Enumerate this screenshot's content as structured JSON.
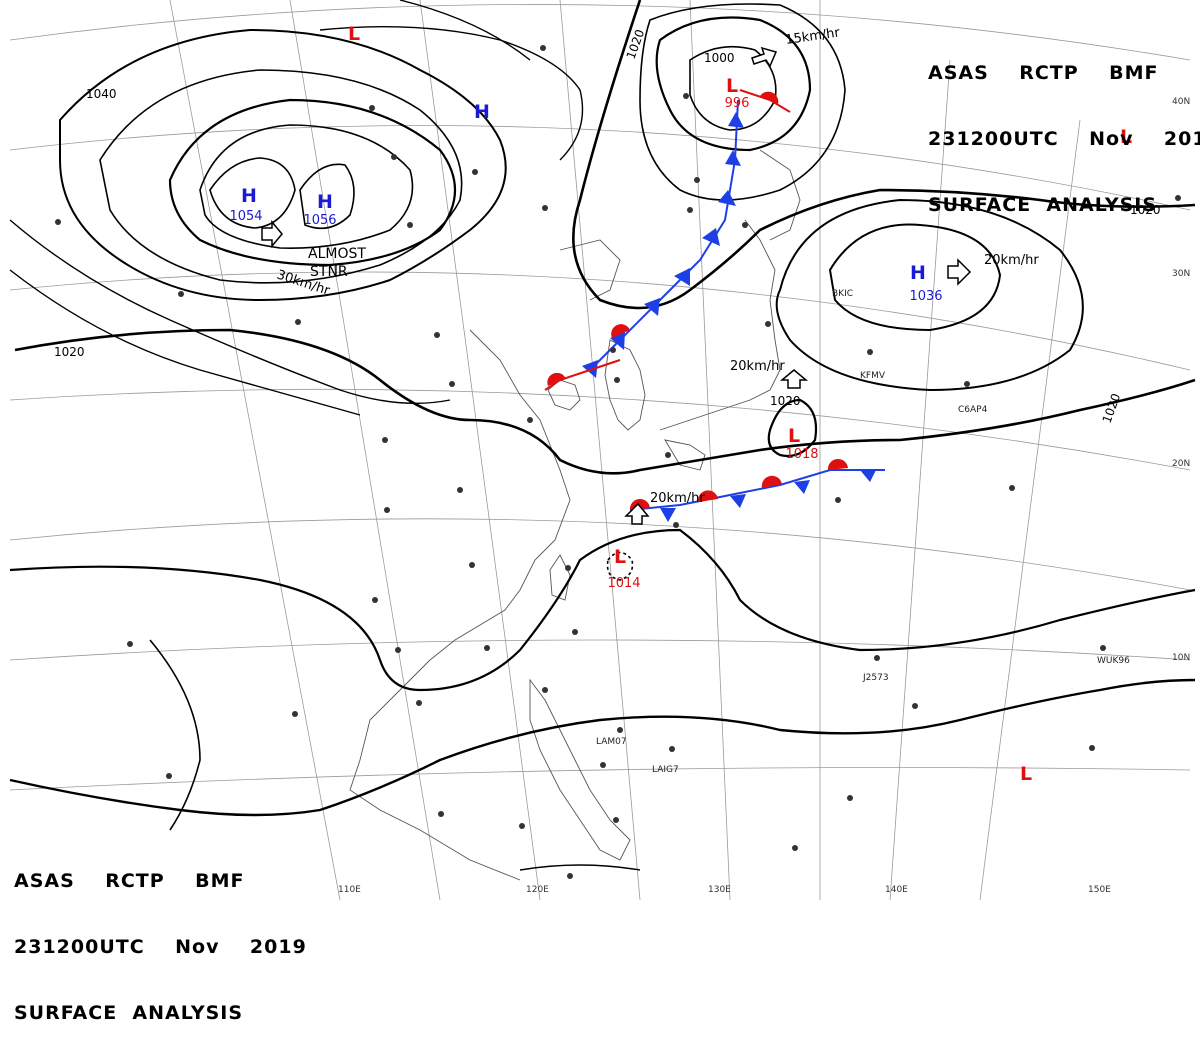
{
  "header": {
    "line1": "ASAS    RCTP    BMF",
    "line2": "231200UTC    Nov    2019",
    "line3": "SURFACE  ANALYSIS"
  },
  "pressure_systems": [
    {
      "type": "H",
      "value": "1054",
      "color": "#1a1ad6"
    },
    {
      "type": "H",
      "value": "1056",
      "color": "#1a1ad6"
    },
    {
      "type": "H",
      "value": "",
      "color": "#1a1ad6"
    },
    {
      "type": "H",
      "value": "1036",
      "color": "#1a1ad6"
    },
    {
      "type": "L",
      "value": "996",
      "color": "#e01010"
    },
    {
      "type": "L",
      "value": "1018",
      "color": "#e01010"
    },
    {
      "type": "L",
      "value": "1014",
      "color": "#e01010"
    },
    {
      "type": "L",
      "value": "",
      "color": "#e01010"
    },
    {
      "type": "L",
      "value": "",
      "color": "#e01010"
    },
    {
      "type": "L",
      "value": "",
      "color": "#e01010"
    }
  ],
  "isobar_labels": [
    "1040",
    "1020",
    "1020",
    "1000",
    "1020",
    "1020",
    "1020"
  ],
  "motion_labels": [
    "30km/hr",
    "15km/hr",
    "20km/hr",
    "20km/hr",
    "20km/hr"
  ],
  "stationary_note": [
    "ALMOST",
    "STNR"
  ],
  "longitude_labels": [
    "110E",
    "120E",
    "130E",
    "140E",
    "150E"
  ],
  "latitude_labels": [
    "40N",
    "30N",
    "20N",
    "10N"
  ],
  "station_labels": [
    "KFMV",
    "C6AP4",
    "BKIC",
    "WUK96",
    "J2573",
    "LAM07",
    "LAIG7"
  ],
  "colors": {
    "high": "#1a1ad6",
    "low": "#e01010",
    "cold_front": "#1f3fe6",
    "warm_front": "#e01010",
    "isobar": "#000000",
    "graticule": "#9a9a9a",
    "coast": "#555555"
  }
}
